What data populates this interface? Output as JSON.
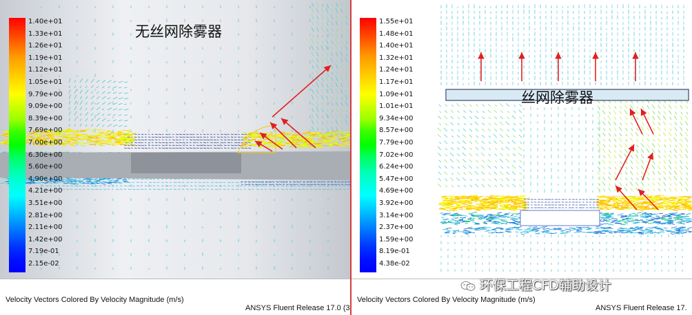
{
  "left_panel": {
    "legend": [
      "1.40e+01",
      "1.33e+01",
      "1.26e+01",
      "1.19e+01",
      "1.12e+01",
      "1.05e+01",
      "9.79e+00",
      "9.09e+00",
      "8.39e+00",
      "7.69e+00",
      "7.00e+00",
      "6.30e+00",
      "5.60e+00",
      "4.90e+00",
      "4.21e+00",
      "3.51e+00",
      "2.81e+00",
      "2.11e+00",
      "1.42e+00",
      "7.19e-01",
      "2.15e-02"
    ],
    "label": "无丝网除雾器",
    "description": "Velocity Vectors Colored By Velocity Magnitude (m/s)",
    "release": "ANSYS Fluent Release 17.0 (3"
  },
  "right_panel": {
    "legend": [
      "1.55e+01",
      "1.48e+01",
      "1.40e+01",
      "1.32e+01",
      "1.24e+01",
      "1.17e+01",
      "1.09e+01",
      "1.01e+01",
      "9.34e+00",
      "8.57e+00",
      "7.79e+00",
      "7.02e+00",
      "6.24e+00",
      "5.47e+00",
      "4.69e+00",
      "3.92e+00",
      "3.14e+00",
      "2.37e+00",
      "1.59e+00",
      "8.19e-01",
      "4.38e-02"
    ],
    "label": "丝网除雾器",
    "description": "Velocity Vectors Colored By Velocity Magnitude (m/s)",
    "release": "ANSYS Fluent Release 17."
  },
  "watermark": {
    "text": "环保工程CFD辅助设计",
    "icon": "wechat-icon"
  },
  "colors": {
    "arrow": "#e02020",
    "divider": "#d53a3a",
    "scale": [
      "#ff0000",
      "#ff3300",
      "#ff6600",
      "#ff9900",
      "#ffbb00",
      "#ffdd00",
      "#ffff00",
      "#ccff00",
      "#99ff00",
      "#33ff00",
      "#00ff00",
      "#00ff66",
      "#00ffaa",
      "#00ffdd",
      "#00ffff",
      "#00ccff",
      "#0099ff",
      "#0066ff",
      "#0033ff",
      "#0011ff",
      "#0000ff"
    ]
  }
}
